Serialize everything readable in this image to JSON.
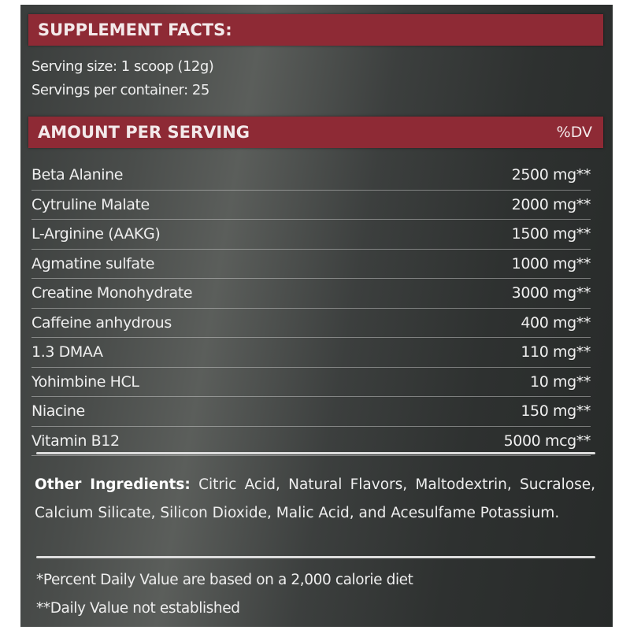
{
  "header": {
    "title": "SUPPLEMENT FACTS:"
  },
  "serving": {
    "size": "Serving size: 1 scoop (12g)",
    "per_container": "Servings per container: 25"
  },
  "table": {
    "header_label": "AMOUNT PER SERVING",
    "header_dv": "%DV",
    "rows": [
      {
        "name": "Beta Alanine",
        "amount": "2500 mg**"
      },
      {
        "name": "Cytruline Malate",
        "amount": "2000 mg**"
      },
      {
        "name": "L-Arginine (AAKG)",
        "amount": "1500 mg**"
      },
      {
        "name": "Agmatine sulfate",
        "amount": "1000 mg**"
      },
      {
        "name": "Creatine Monohydrate",
        "amount": "3000 mg**"
      },
      {
        "name": "Caffeine anhydrous",
        "amount": "400 mg**"
      },
      {
        "name": "1.3 DMAA",
        "amount": "110 mg**"
      },
      {
        "name": "Yohimbine HCL",
        "amount": "10 mg**"
      },
      {
        "name": "Niacine",
        "amount": "150 mg**"
      },
      {
        "name": "Vitamin B12",
        "amount": "5000 mcg**"
      }
    ]
  },
  "other": {
    "label": "Other Ingredients:",
    "text": "Citric Acid, Natural Flavors, Maltodextrin, Sucralose, Calcium Silicate, Silicon Dioxide, Malic Acid, and Acesulfame Potassium."
  },
  "footnotes": {
    "one": "*Percent Daily Value are based on a 2,000 calorie diet",
    "two": "**Daily Value not established"
  },
  "colors": {
    "band": "#8e2a35",
    "background": "#3a3d3c",
    "text": "#efefef"
  }
}
